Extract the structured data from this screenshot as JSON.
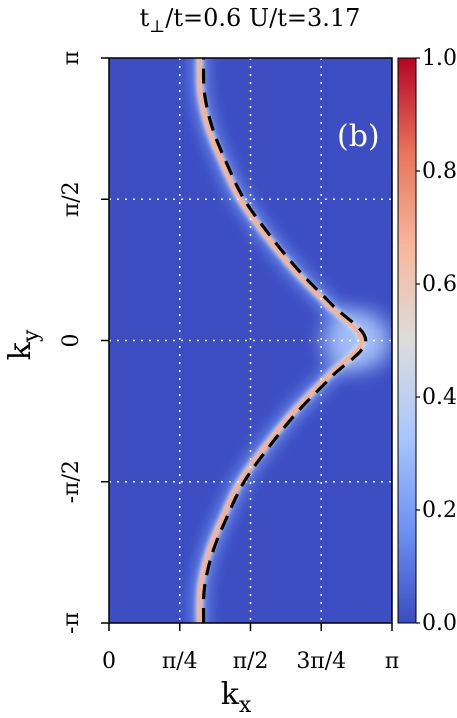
{
  "chart_data": {
    "type": "heatmap",
    "title": {
      "main": "t",
      "sub": "⊥",
      "rest": "/t=0.6  U/t=3.17"
    },
    "panel_label": "(b)",
    "xlabel": {
      "main": "k",
      "sub": "x"
    },
    "ylabel": {
      "main": "k",
      "sub": "y"
    },
    "xlim": [
      0,
      3.14159
    ],
    "ylim": [
      -3.14159,
      3.14159
    ],
    "x_ticks": [
      {
        "value": 0,
        "label": "0"
      },
      {
        "value": 0.7854,
        "label": "π/4"
      },
      {
        "value": 1.5708,
        "label": "π/2"
      },
      {
        "value": 2.3562,
        "label": "3π/4"
      },
      {
        "value": 3.14159,
        "label": "π"
      }
    ],
    "y_ticks": [
      {
        "value": 3.14159,
        "label": "π"
      },
      {
        "value": 1.5708,
        "label": "π/2"
      },
      {
        "value": 0,
        "label": "0"
      },
      {
        "value": -1.5708,
        "label": "-π/2"
      },
      {
        "value": -3.14159,
        "label": "-π"
      }
    ],
    "grid": "dotted",
    "colorbar": {
      "range": [
        0,
        1
      ],
      "ticks": [
        {
          "value": 0.0,
          "label": "0.0"
        },
        {
          "value": 0.2,
          "label": "0.2"
        },
        {
          "value": 0.4,
          "label": "0.4"
        },
        {
          "value": 0.6,
          "label": "0.6"
        },
        {
          "value": 0.8,
          "label": "0.8"
        },
        {
          "value": 1.0,
          "label": "1.0"
        }
      ],
      "colormap": "coolwarm",
      "stops": [
        "#3b4cc0",
        "#6f92f3",
        "#aac7fd",
        "#dddcdc",
        "#f7b89c",
        "#e7745b",
        "#b40426"
      ]
    },
    "fermi_surface": {
      "line_style": "dashed",
      "points": [
        {
          "ky": -3.14159,
          "kx": 1.05
        },
        {
          "ky": -2.75,
          "kx": 1.06
        },
        {
          "ky": -2.356,
          "kx": 1.15
        },
        {
          "ky": -1.963,
          "kx": 1.31
        },
        {
          "ky": -1.571,
          "kx": 1.5
        },
        {
          "ky": -1.178,
          "kx": 1.78
        },
        {
          "ky": -0.785,
          "kx": 2.1
        },
        {
          "ky": -0.393,
          "kx": 2.48
        },
        {
          "ky": 0.0,
          "kx": 2.85
        },
        {
          "ky": 0.393,
          "kx": 2.48
        },
        {
          "ky": 0.785,
          "kx": 2.1
        },
        {
          "ky": 1.178,
          "kx": 1.78
        },
        {
          "ky": 1.571,
          "kx": 1.5
        },
        {
          "ky": 1.963,
          "kx": 1.31
        },
        {
          "ky": 2.356,
          "kx": 1.15
        },
        {
          "ky": 2.75,
          "kx": 1.06
        },
        {
          "ky": 3.14159,
          "kx": 1.05
        }
      ]
    },
    "spectral_ridge": {
      "peak_value": 0.7,
      "hotspot": {
        "kx": 2.75,
        "ky": 0.0,
        "value": 0.72
      }
    }
  }
}
